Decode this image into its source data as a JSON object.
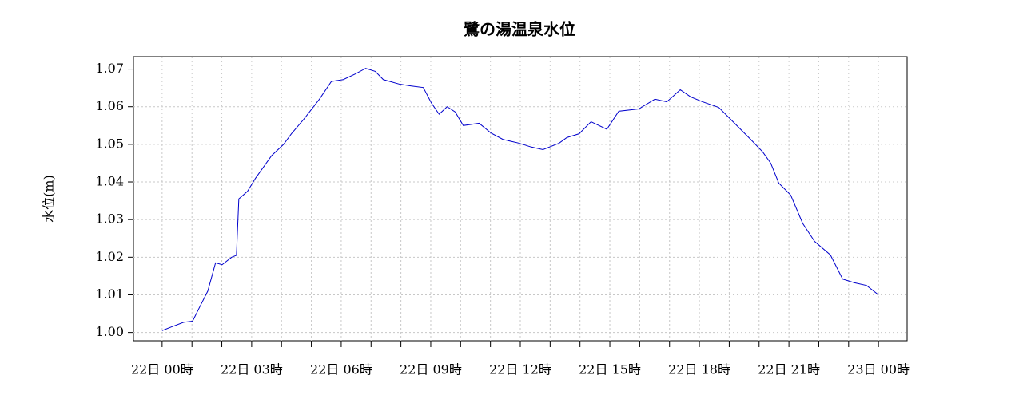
{
  "chart_data": {
    "type": "line",
    "title": "鷺の湯温泉水位",
    "ylabel": "水位(m)",
    "x": [
      0,
      0.32,
      0.72,
      1.02,
      1.26,
      1.53,
      1.79,
      2.01,
      2.33,
      2.49,
      2.57,
      2.86,
      3.13,
      3.67,
      4.07,
      4.33,
      4.74,
      5.27,
      5.67,
      6.07,
      6.47,
      6.82,
      7.14,
      7.41,
      7.95,
      8.35,
      8.75,
      9.02,
      9.28,
      9.55,
      9.82,
      10.09,
      10.62,
      11.02,
      11.42,
      11.96,
      12.36,
      12.76,
      13.3,
      13.56,
      13.97,
      14.37,
      14.9,
      15.3,
      15.97,
      16.51,
      16.91,
      17.36,
      17.71,
      18.11,
      18.65,
      19.18,
      19.72,
      20.12,
      20.39,
      20.66,
      21.06,
      21.46,
      21.86,
      22.39,
      22.8,
      23.2,
      23.6,
      24
    ],
    "series": [
      {
        "name": "水位",
        "color": "#0000cc",
        "values": [
          1.0005,
          1.0015,
          1.0027,
          1.003,
          1.0068,
          1.011,
          1.0185,
          1.018,
          1.02,
          1.0205,
          1.0355,
          1.0375,
          1.041,
          1.047,
          1.05,
          1.0528,
          1.0566,
          1.062,
          1.0667,
          1.0672,
          1.0687,
          1.0702,
          1.0694,
          1.0672,
          1.066,
          1.0655,
          1.0651,
          1.061,
          1.058,
          1.06,
          1.0586,
          1.055,
          1.0556,
          1.053,
          1.0513,
          1.0503,
          1.0493,
          1.0486,
          1.0503,
          1.0518,
          1.0528,
          1.056,
          1.054,
          1.0588,
          1.0594,
          1.062,
          1.0613,
          1.0645,
          1.0626,
          1.0613,
          1.0598,
          1.0556,
          1.0513,
          1.048,
          1.045,
          1.0397,
          1.0365,
          1.029,
          1.0242,
          1.0206,
          1.0142,
          1.0132,
          1.0125,
          1.01
        ]
      }
    ],
    "xlim": [
      -0.96,
      24.96
    ],
    "xticks": [
      {
        "value": 0,
        "label": "22日  00時"
      },
      {
        "value": 3,
        "label": "22日  03時"
      },
      {
        "value": 6,
        "label": "22日  06時"
      },
      {
        "value": 9,
        "label": "22日  09時"
      },
      {
        "value": 12,
        "label": "22日  12時"
      },
      {
        "value": 15,
        "label": "22日  15時"
      },
      {
        "value": 18,
        "label": "22日  18時"
      },
      {
        "value": 21,
        "label": "22日  21時"
      },
      {
        "value": 24,
        "label": "23日  00時"
      }
    ],
    "x_minor_ticks": [
      1,
      2,
      4,
      5,
      7,
      8,
      10,
      11,
      13,
      14,
      16,
      17,
      19,
      20,
      22,
      23
    ],
    "ylim": [
      0.9978,
      1.0733
    ],
    "yticks": [
      {
        "value": 1,
        "label": "1.00"
      },
      1.01,
      1.02,
      1.03,
      1.04,
      1.05,
      1.06,
      1.07
    ],
    "grid": true
  }
}
